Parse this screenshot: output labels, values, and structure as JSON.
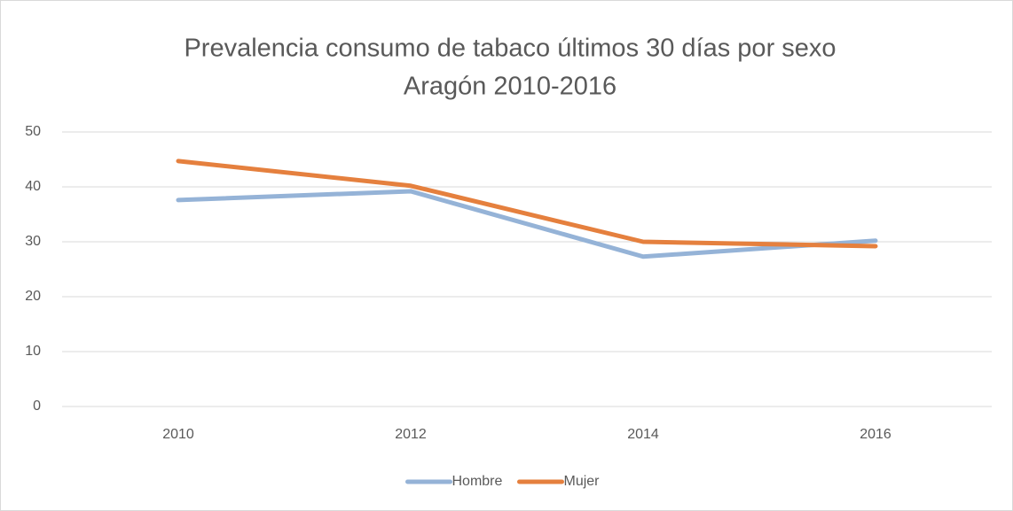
{
  "chart_data": {
    "type": "line",
    "title": [
      "Prevalencia consumo de tabaco últimos 30 días por sexo",
      "Aragón 2010-2016"
    ],
    "categories": [
      "2010",
      "2012",
      "2014",
      "2016"
    ],
    "series": [
      {
        "name": "Hombre",
        "color": "#95b3d7",
        "values": [
          37.6,
          39.2,
          27.3,
          30.2
        ]
      },
      {
        "name": "Mujer",
        "color": "#e5803e",
        "values": [
          44.7,
          40.2,
          30.0,
          29.2
        ]
      }
    ],
    "ylim": [
      0,
      50
    ],
    "yticks": [
      0,
      10,
      20,
      30,
      40,
      50
    ],
    "grid": true,
    "legend": "bottom"
  }
}
